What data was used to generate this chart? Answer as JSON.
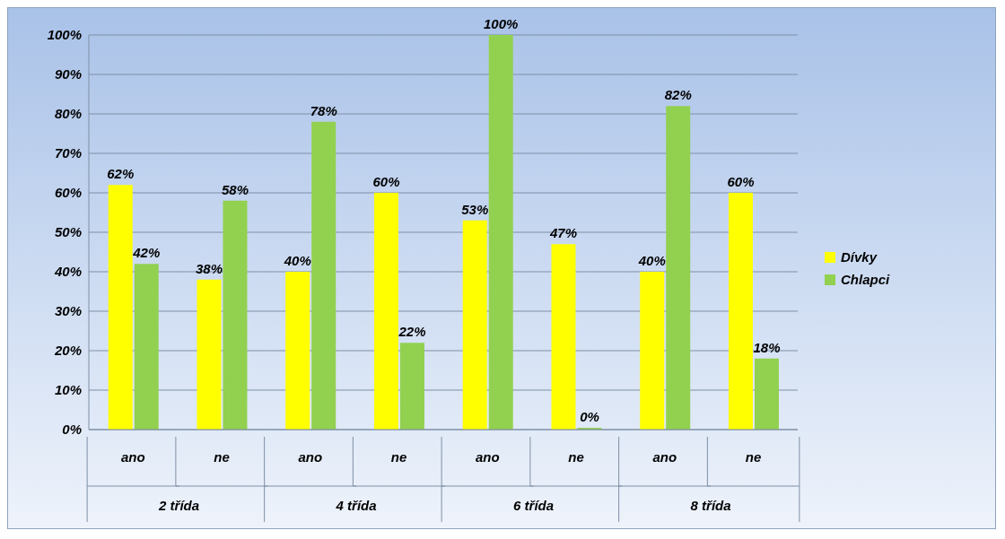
{
  "chart_data": {
    "type": "bar",
    "categories": [
      "ano",
      "ne",
      "ano",
      "ne",
      "ano",
      "ne",
      "ano",
      "ne"
    ],
    "annotations": [
      "2 třída",
      "4 třída",
      "6 třída",
      "8 třída"
    ],
    "series": [
      {
        "name": "Dívky",
        "color": "#ffff00",
        "values": [
          62,
          38,
          40,
          60,
          53,
          47,
          40,
          60
        ],
        "value_labels": [
          "62%",
          "38%",
          "40%",
          "60%",
          "53%",
          "47%",
          "40%",
          "60%"
        ]
      },
      {
        "name": "Chlapci",
        "color": "#92d050",
        "values": [
          42,
          58,
          78,
          22,
          100,
          0,
          82,
          18
        ],
        "value_labels": [
          "42%",
          "58%",
          "78%",
          "22%",
          "100%",
          "0%",
          "82%",
          "18%"
        ]
      }
    ],
    "ylim": [
      0,
      100
    ],
    "yticks": [
      {
        "value": 0,
        "label": "0%"
      },
      {
        "value": 10,
        "label": "10%"
      },
      {
        "value": 20,
        "label": "20%"
      },
      {
        "value": 30,
        "label": "30%"
      },
      {
        "value": 40,
        "label": "40%"
      },
      {
        "value": 50,
        "label": "50%"
      },
      {
        "value": 60,
        "label": "60%"
      },
      {
        "value": 70,
        "label": "70%"
      },
      {
        "value": 80,
        "label": "80%"
      },
      {
        "value": 90,
        "label": "90%"
      },
      {
        "value": 100,
        "label": "100%"
      }
    ],
    "grid": "y",
    "legend": "right"
  }
}
